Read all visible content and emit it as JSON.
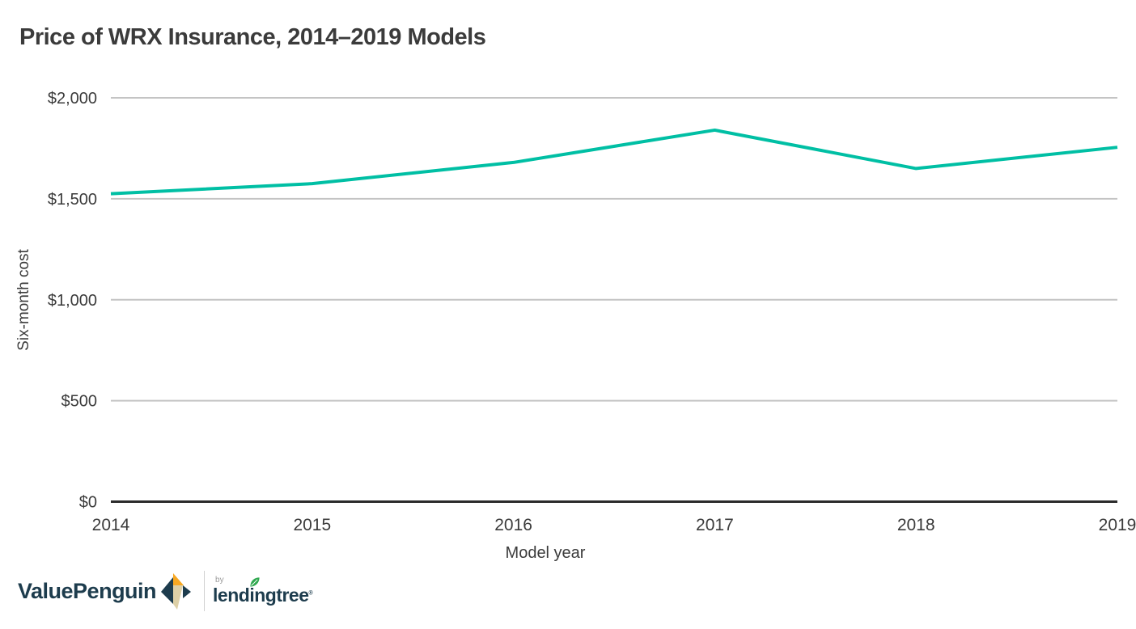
{
  "chart_data": {
    "type": "line",
    "title": "Price of WRX Insurance, 2014–2019 Models",
    "xlabel": "Model year",
    "ylabel": "Six-month cost",
    "categories": [
      "2014",
      "2015",
      "2016",
      "2017",
      "2018",
      "2019"
    ],
    "values": [
      1525,
      1575,
      1680,
      1840,
      1650,
      1755
    ],
    "ylim": [
      0,
      2000
    ],
    "yticks": [
      0,
      500,
      1000,
      1500,
      2000
    ],
    "ytick_labels": [
      "$0",
      "$500",
      "$1,000",
      "$1,500",
      "$2,000"
    ],
    "grid": true,
    "legend": "none",
    "line_color": "#00bfa4",
    "gridline_color": "#c4c4c4",
    "axis_color": "#2b2b2b",
    "text_color": "#3b3b3b"
  },
  "footer": {
    "brand": "ValuePenguin",
    "by_label": "by",
    "partner": "lendingtree",
    "trademark": "®",
    "brand_color": "#1d3c4d",
    "icon_colors": {
      "orange": "#f7a823",
      "navy": "#1d3c4d",
      "cream": "#ddd0a7"
    },
    "leaf_color": "#2fa84f"
  }
}
